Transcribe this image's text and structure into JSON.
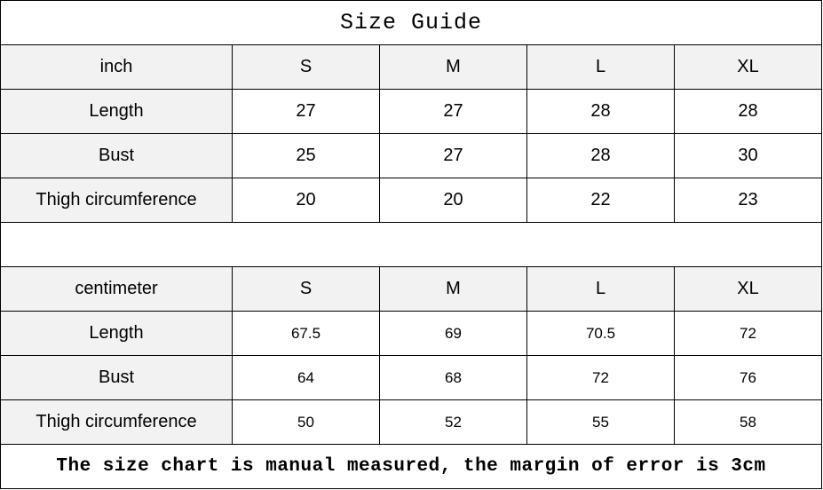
{
  "title": "Size Guide",
  "inch_table": {
    "unit": "inch",
    "sizes": [
      "S",
      "M",
      "L",
      "XL"
    ],
    "rows": [
      {
        "label": "Length",
        "values": [
          "27",
          "27",
          "28",
          "28"
        ]
      },
      {
        "label": "Bust",
        "values": [
          "25",
          "27",
          "28",
          "30"
        ]
      },
      {
        "label": "Thigh circumference",
        "values": [
          "20",
          "20",
          "22",
          "23"
        ]
      }
    ]
  },
  "cm_table": {
    "unit": "centimeter",
    "sizes": [
      "S",
      "M",
      "L",
      "XL"
    ],
    "rows": [
      {
        "label": "Length",
        "values": [
          "67.5",
          "69",
          "70.5",
          "72"
        ]
      },
      {
        "label": "Bust",
        "values": [
          "64",
          "68",
          "72",
          "76"
        ]
      },
      {
        "label": "Thigh circumference",
        "values": [
          "50",
          "52",
          "55",
          "58"
        ]
      }
    ]
  },
  "footer": "The size chart is manual measured, the margin of error is 3cm",
  "colors": {
    "header_bg": "#f2f2f2",
    "border": "#000000"
  }
}
